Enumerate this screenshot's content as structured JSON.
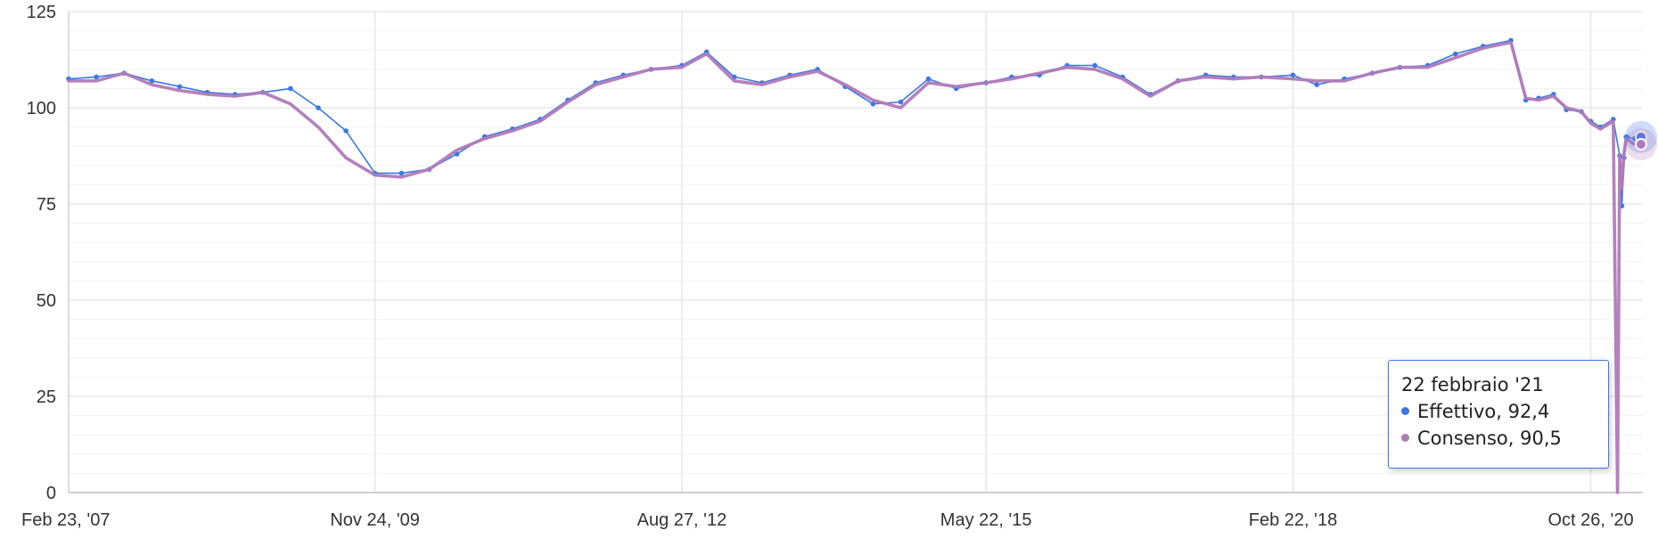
{
  "chart_data": {
    "type": "line",
    "title": "",
    "xlabel": "",
    "ylabel": "",
    "ylim": [
      0,
      125
    ],
    "xlim": [
      "2007-02-23",
      "2021-04-15"
    ],
    "y_ticks": [
      "0",
      "25",
      "50",
      "75",
      "100",
      "125"
    ],
    "x_ticks": [
      {
        "date": "2007-02-23",
        "label": "Feb 23, '07"
      },
      {
        "date": "2009-11-24",
        "label": "Nov 24, '09"
      },
      {
        "date": "2012-08-27",
        "label": "Aug 27, '12"
      },
      {
        "date": "2015-05-22",
        "label": "May 22, '15"
      },
      {
        "date": "2018-02-22",
        "label": "Feb 22, '18"
      },
      {
        "date": "2020-10-26",
        "label": "Oct 26, '20"
      }
    ],
    "grid": true,
    "series": [
      {
        "name": "Effettivo",
        "color": "#3a78e7",
        "markers": true,
        "points": [
          [
            "2007-02-23",
            107.5
          ],
          [
            "2007-05-25",
            108
          ],
          [
            "2007-08-24",
            109
          ],
          [
            "2007-11-23",
            107
          ],
          [
            "2008-02-22",
            105.5
          ],
          [
            "2008-05-23",
            104
          ],
          [
            "2008-08-22",
            103.5
          ],
          [
            "2008-11-21",
            104
          ],
          [
            "2009-02-20",
            105
          ],
          [
            "2009-05-22",
            100
          ],
          [
            "2009-08-21",
            94
          ],
          [
            "2009-11-24",
            83
          ],
          [
            "2010-02-19",
            83
          ],
          [
            "2010-05-21",
            84
          ],
          [
            "2010-08-20",
            88
          ],
          [
            "2010-11-19",
            92.5
          ],
          [
            "2011-02-18",
            94.5
          ],
          [
            "2011-05-20",
            97
          ],
          [
            "2011-08-19",
            102
          ],
          [
            "2011-11-18",
            106.5
          ],
          [
            "2012-02-17",
            108.5
          ],
          [
            "2012-05-18",
            110
          ],
          [
            "2012-08-27",
            111
          ],
          [
            "2012-11-16",
            114.5
          ],
          [
            "2013-02-15",
            108
          ],
          [
            "2013-05-17",
            106.5
          ],
          [
            "2013-08-16",
            108.5
          ],
          [
            "2013-11-15",
            110
          ],
          [
            "2014-02-14",
            105.5
          ],
          [
            "2014-05-16",
            101
          ],
          [
            "2014-08-15",
            101.5
          ],
          [
            "2014-11-14",
            107.5
          ],
          [
            "2015-02-13",
            105
          ],
          [
            "2015-05-22",
            106.5
          ],
          [
            "2015-08-14",
            108
          ],
          [
            "2015-11-13",
            108.5
          ],
          [
            "2016-02-12",
            111
          ],
          [
            "2016-05-13",
            111
          ],
          [
            "2016-08-12",
            108
          ],
          [
            "2016-11-11",
            103.5
          ],
          [
            "2017-02-10",
            107
          ],
          [
            "2017-05-12",
            108.5
          ],
          [
            "2017-08-11",
            108
          ],
          [
            "2017-11-10",
            108
          ],
          [
            "2018-02-22",
            108.5
          ],
          [
            "2018-05-11",
            106
          ],
          [
            "2018-08-10",
            107.5
          ],
          [
            "2018-11-09",
            109
          ],
          [
            "2019-02-08",
            110.5
          ],
          [
            "2019-05-10",
            111
          ],
          [
            "2019-08-09",
            114
          ],
          [
            "2019-11-08",
            116
          ],
          [
            "2020-02-07",
            117.5
          ],
          [
            "2020-03-27",
            102
          ],
          [
            "2020-05-08",
            102.5
          ],
          [
            "2020-06-26",
            103.5
          ],
          [
            "2020-08-07",
            99.5
          ],
          [
            "2020-09-25",
            99
          ],
          [
            "2020-10-26",
            96.5
          ],
          [
            "2020-11-27",
            95
          ],
          [
            "2021-01-08",
            97
          ],
          [
            "2021-01-29",
            87.5
          ],
          [
            "2021-02-05",
            74.5
          ],
          [
            "2021-02-12",
            87
          ],
          [
            "2021-02-19",
            92.4
          ],
          [
            "2021-02-22",
            92.4
          ],
          [
            "2021-03-19",
            92
          ],
          [
            "2021-04-09",
            92.4
          ]
        ]
      },
      {
        "name": "Consenso",
        "color": "#b07ab8",
        "markers": false,
        "points": [
          [
            "2007-02-23",
            107
          ],
          [
            "2007-05-25",
            107
          ],
          [
            "2007-08-24",
            109
          ],
          [
            "2007-11-23",
            106
          ],
          [
            "2008-02-22",
            104.5
          ],
          [
            "2008-05-23",
            103.5
          ],
          [
            "2008-08-22",
            103
          ],
          [
            "2008-11-21",
            104
          ],
          [
            "2009-02-20",
            101
          ],
          [
            "2009-05-22",
            95
          ],
          [
            "2009-08-21",
            87
          ],
          [
            "2009-11-24",
            82.5
          ],
          [
            "2010-02-19",
            82
          ],
          [
            "2010-05-21",
            84
          ],
          [
            "2010-08-20",
            89
          ],
          [
            "2010-11-19",
            92
          ],
          [
            "2011-02-18",
            94
          ],
          [
            "2011-05-20",
            96.5
          ],
          [
            "2011-08-19",
            101.5
          ],
          [
            "2011-11-18",
            106
          ],
          [
            "2012-02-17",
            108
          ],
          [
            "2012-05-18",
            110
          ],
          [
            "2012-08-27",
            110.5
          ],
          [
            "2012-11-16",
            114
          ],
          [
            "2013-02-15",
            107
          ],
          [
            "2013-05-17",
            106
          ],
          [
            "2013-08-16",
            108
          ],
          [
            "2013-11-15",
            109.5
          ],
          [
            "2014-02-14",
            106
          ],
          [
            "2014-05-16",
            102
          ],
          [
            "2014-08-15",
            100
          ],
          [
            "2014-11-14",
            106.5
          ],
          [
            "2015-02-13",
            105.5
          ],
          [
            "2015-05-22",
            106.5
          ],
          [
            "2015-08-14",
            107.5
          ],
          [
            "2015-11-13",
            109
          ],
          [
            "2016-02-12",
            110.5
          ],
          [
            "2016-05-13",
            110
          ],
          [
            "2016-08-12",
            107.5
          ],
          [
            "2016-11-11",
            103
          ],
          [
            "2017-02-10",
            107
          ],
          [
            "2017-05-12",
            108
          ],
          [
            "2017-08-11",
            107.5
          ],
          [
            "2017-11-10",
            108
          ],
          [
            "2018-02-22",
            107.5
          ],
          [
            "2018-05-11",
            107
          ],
          [
            "2018-08-10",
            107
          ],
          [
            "2018-11-09",
            109
          ],
          [
            "2019-02-08",
            110.5
          ],
          [
            "2019-05-10",
            110.5
          ],
          [
            "2019-08-09",
            113
          ],
          [
            "2019-11-08",
            115.5
          ],
          [
            "2020-02-07",
            117
          ],
          [
            "2020-03-27",
            102.5
          ],
          [
            "2020-05-08",
            102
          ],
          [
            "2020-06-26",
            103
          ],
          [
            "2020-08-07",
            100
          ],
          [
            "2020-09-25",
            99
          ],
          [
            "2020-10-26",
            96
          ],
          [
            "2020-11-27",
            94.5
          ],
          [
            "2021-01-08",
            96.5
          ],
          [
            "2021-01-22",
            0
          ],
          [
            "2021-01-29",
            87.5
          ],
          [
            "2021-02-05",
            79
          ],
          [
            "2021-02-12",
            88
          ],
          [
            "2021-02-19",
            92
          ],
          [
            "2021-03-19",
            90.5
          ],
          [
            "2021-04-09",
            90.5
          ]
        ]
      }
    ],
    "tooltip": {
      "date": "22 febbraio '21",
      "lines": [
        {
          "series": "Effettivo",
          "value": "92,4",
          "text": "Effettivo, 92,4",
          "color": "#3a78e7"
        },
        {
          "series": "Consenso",
          "value": "90,5",
          "text": "Consenso, 90,5",
          "color": "#b07ab8"
        }
      ]
    }
  }
}
